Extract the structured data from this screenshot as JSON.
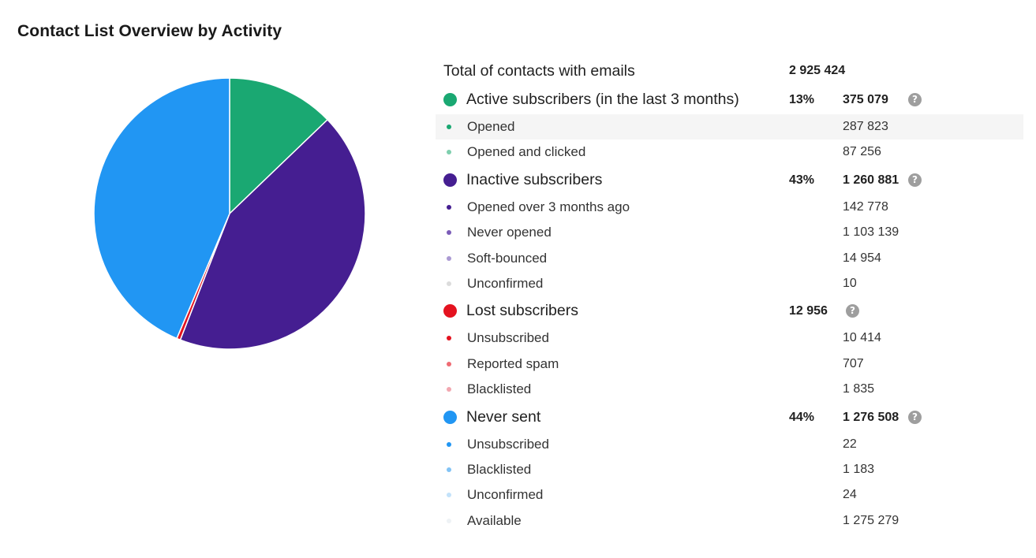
{
  "title": "Contact List Overview by Activity",
  "total": {
    "label": "Total of contacts with emails",
    "value": "2 925 424"
  },
  "help_glyph": "?",
  "groups": [
    {
      "label": "Active subscribers (in the last 3 months)",
      "pct": "13%",
      "value": "375 079",
      "color": "#1aa872",
      "items": [
        {
          "label": "Opened",
          "value": "287 823",
          "color": "#1aa872"
        },
        {
          "label": "Opened and clicked",
          "value": "87 256",
          "color": "#7fcfae"
        }
      ]
    },
    {
      "label": "Inactive subscribers",
      "pct": "43%",
      "value": "1 260 881",
      "color": "#451e91",
      "items": [
        {
          "label": "Opened over 3 months ago",
          "value": "142 778",
          "color": "#451e91"
        },
        {
          "label": "Never opened",
          "value": "1 103 139",
          "color": "#7b5cb8"
        },
        {
          "label": "Soft-bounced",
          "value": "14 954",
          "color": "#ab9ad3"
        },
        {
          "label": "Unconfirmed",
          "value": "10",
          "color": "#dcdcdc"
        }
      ]
    },
    {
      "label": "Lost subscribers",
      "pct": "",
      "value": "12 956",
      "color": "#e4121f",
      "items": [
        {
          "label": "Unsubscribed",
          "value": "10 414",
          "color": "#e4121f"
        },
        {
          "label": "Reported spam",
          "value": "707",
          "color": "#ef6b73"
        },
        {
          "label": "Blacklisted",
          "value": "1 835",
          "color": "#f2a7b0"
        }
      ]
    },
    {
      "label": "Never sent",
      "pct": "44%",
      "value": "1 276 508",
      "color": "#2196f3",
      "items": [
        {
          "label": "Unsubscribed",
          "value": "22",
          "color": "#2196f3"
        },
        {
          "label": "Blacklisted",
          "value": "1 183",
          "color": "#82c3f5"
        },
        {
          "label": "Unconfirmed",
          "value": "24",
          "color": "#c3e2fa"
        },
        {
          "label": "Available",
          "value": "1 275 279",
          "color": "#eef2f5"
        }
      ]
    }
  ],
  "chart_data": {
    "type": "pie",
    "title": "Contact List Overview by Activity",
    "slices": [
      {
        "name": "Active subscribers (in the last 3 months)",
        "value": 375079,
        "color": "#1aa872"
      },
      {
        "name": "Inactive subscribers",
        "value": 1260881,
        "color": "#451e91"
      },
      {
        "name": "Lost subscribers",
        "value": 12956,
        "color": "#e4121f"
      },
      {
        "name": "Never sent",
        "value": 1276508,
        "color": "#2196f3"
      }
    ]
  }
}
